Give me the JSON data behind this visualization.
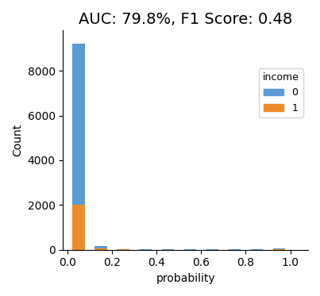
{
  "title": "AUC: 79.8%, F1 Score: 0.48",
  "xlabel": "probability",
  "ylabel": "Count",
  "legend_title": "income",
  "legend_labels": [
    "0",
    "1"
  ],
  "colors": [
    "#5b9bd5",
    "#ed8c2b"
  ],
  "bin_edges": [
    0.0,
    0.1,
    0.2,
    0.3,
    0.4,
    0.5,
    0.6,
    0.7,
    0.8,
    0.9,
    1.0
  ],
  "class0_counts": [
    7200,
    75,
    10,
    5,
    5,
    5,
    5,
    5,
    5,
    30
  ],
  "class1_counts": [
    2000,
    75,
    10,
    5,
    5,
    5,
    5,
    5,
    5,
    40
  ],
  "xlim": [
    -0.02,
    1.08
  ],
  "ylim": [
    0,
    9800
  ],
  "yticks": [
    0,
    2000,
    4000,
    6000,
    8000
  ],
  "xticks": [
    0.0,
    0.2,
    0.4,
    0.6,
    0.8,
    1.0
  ],
  "title_fontsize": 14,
  "axis_label_fontsize": 10,
  "tick_fontsize": 10
}
